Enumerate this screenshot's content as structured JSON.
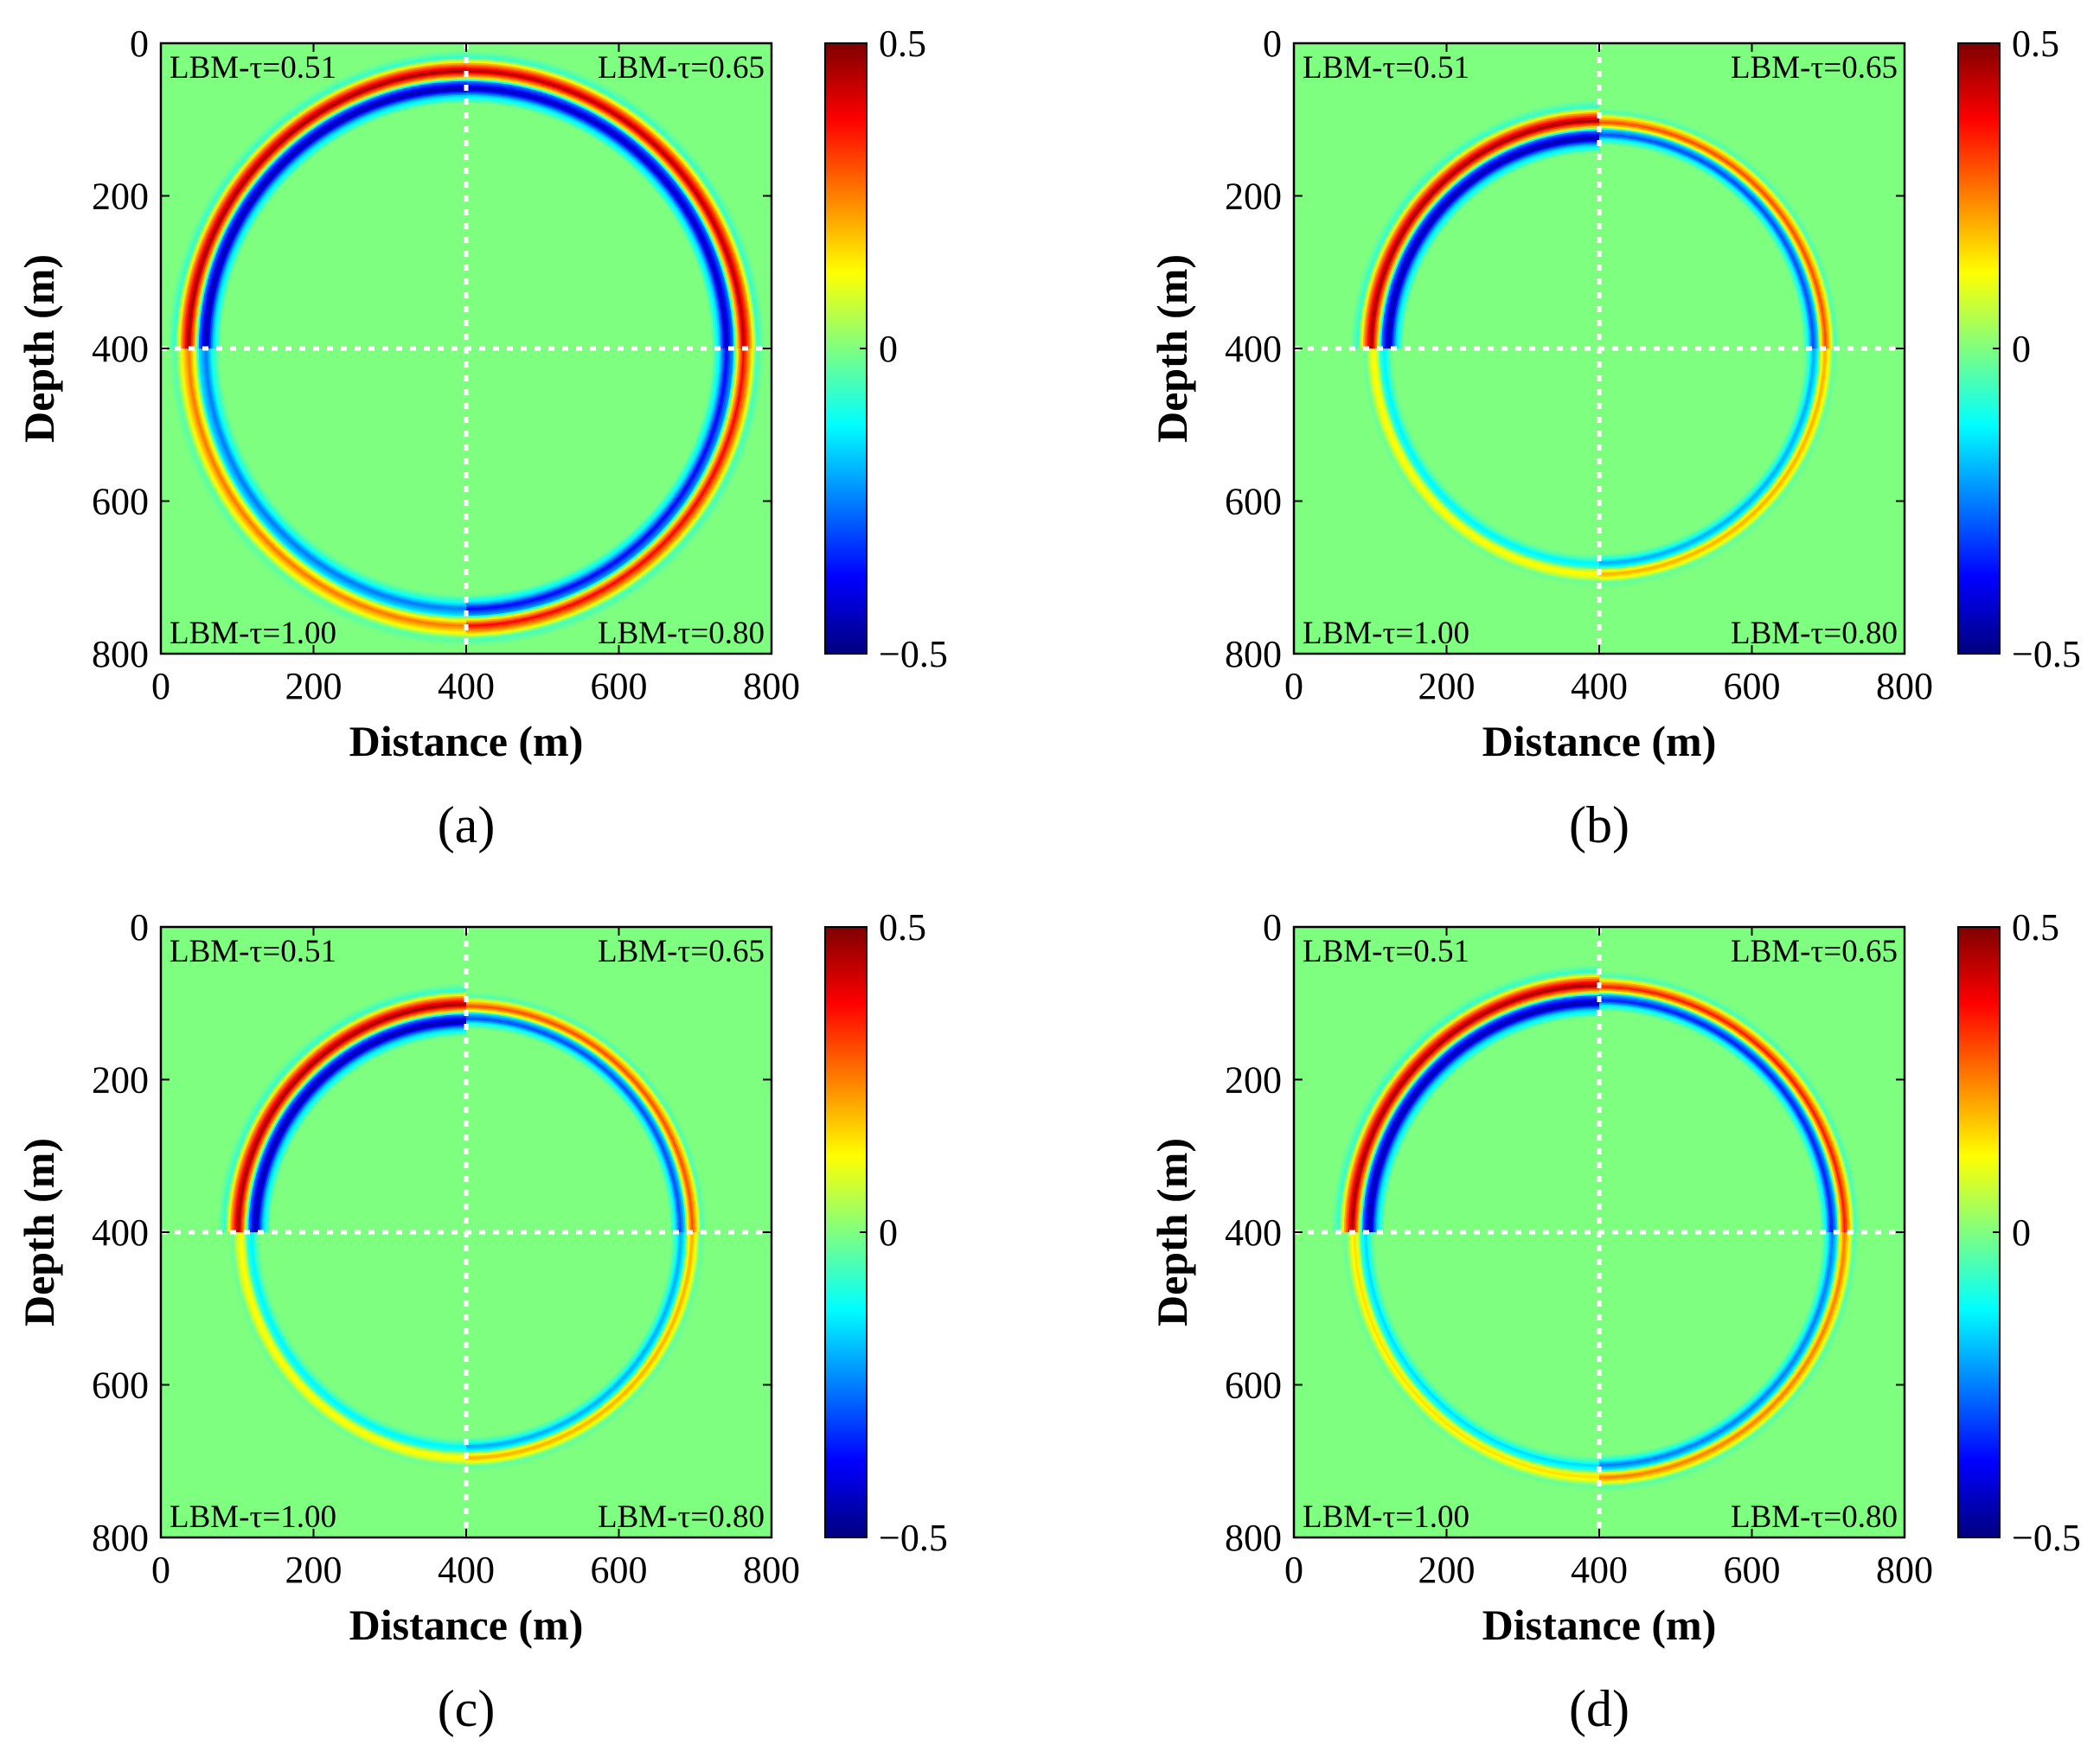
{
  "colors": {
    "background": "#ffffff",
    "field_zero": "#7fff7f",
    "separator": "#ffffff"
  },
  "colormap": {
    "name": "jet",
    "stops": [
      "#00007f",
      "#0000ff",
      "#007fff",
      "#00ffff",
      "#7fff7f",
      "#ffff00",
      "#ff7f00",
      "#ff0000",
      "#7f0000"
    ]
  },
  "chart_data": [
    {
      "type": "heatmap",
      "panel_label": "(a)",
      "xlabel": "Distance (m)",
      "ylabel": "Depth (m)",
      "xlim": [
        0,
        800
      ],
      "ylim": [
        0,
        800
      ],
      "xticks": [
        "0",
        "200",
        "400",
        "600",
        "800"
      ],
      "yticks": [
        "0",
        "200",
        "400",
        "600",
        "800"
      ],
      "colorbar": {
        "min": -0.5,
        "max": 0.5,
        "ticks": [
          "0.5",
          "0",
          "−0.5"
        ]
      },
      "source": {
        "x": 400,
        "y": 400
      },
      "wavefront_radius_m": 355,
      "divider_lines": {
        "x": 400,
        "y": 400,
        "style": "dotted"
      },
      "quadrants": [
        {
          "position": "top-left",
          "label": "LBM-τ=0.51",
          "amplitude": 1.0,
          "decay": 1.0
        },
        {
          "position": "top-right",
          "label": "LBM-τ=0.65",
          "amplitude": 0.95,
          "decay": 1.0
        },
        {
          "position": "bottom-left",
          "label": "LBM-τ=1.00",
          "amplitude": 0.55,
          "decay": 0.95
        },
        {
          "position": "bottom-right",
          "label": "LBM-τ=0.80",
          "amplitude": 0.8,
          "decay": 0.95
        }
      ]
    },
    {
      "type": "heatmap",
      "panel_label": "(b)",
      "xlabel": "Distance (m)",
      "ylabel": "Depth (m)",
      "xlim": [
        0,
        800
      ],
      "ylim": [
        0,
        800
      ],
      "xticks": [
        "0",
        "200",
        "400",
        "600",
        "800"
      ],
      "yticks": [
        "0",
        "200",
        "400",
        "600",
        "800"
      ],
      "colorbar": {
        "min": -0.5,
        "max": 0.5,
        "ticks": [
          "0.5",
          "0",
          "−0.5"
        ]
      },
      "source": {
        "x": 400,
        "y": 400
      },
      "wavefront_radius_m": 290,
      "divider_lines": {
        "x": 400,
        "y": 400,
        "style": "dotted"
      },
      "quadrants": [
        {
          "position": "top-left",
          "label": "LBM-τ=0.51",
          "amplitude": 1.0,
          "decay": 1.0
        },
        {
          "position": "top-right",
          "label": "LBM-τ=0.65",
          "amplitude": 0.65,
          "decay": 0.5
        },
        {
          "position": "bottom-left",
          "label": "LBM-τ=1.00",
          "amplitude": 0.3,
          "decay": 0.35
        },
        {
          "position": "bottom-right",
          "label": "LBM-τ=0.80",
          "amplitude": 0.45,
          "decay": 0.4
        }
      ]
    },
    {
      "type": "heatmap",
      "panel_label": "(c)",
      "xlabel": "Distance (m)",
      "ylabel": "Depth (m)",
      "xlim": [
        0,
        800
      ],
      "ylim": [
        0,
        800
      ],
      "xticks": [
        "0",
        "200",
        "400",
        "600",
        "800"
      ],
      "yticks": [
        "0",
        "200",
        "400",
        "600",
        "800"
      ],
      "colorbar": {
        "min": -0.5,
        "max": 0.5,
        "ticks": [
          "0.5",
          "0",
          "−0.5"
        ]
      },
      "source": {
        "x": 400,
        "y": 400
      },
      "wavefront_radius_m": 290,
      "divider_lines": {
        "x": 400,
        "y": 400,
        "style": "dotted"
      },
      "quadrants": [
        {
          "position": "top-left",
          "label": "LBM-τ=0.51",
          "amplitude": 1.0,
          "decay": 1.0
        },
        {
          "position": "top-right",
          "label": "LBM-τ=0.65",
          "amplitude": 0.65,
          "decay": 0.5
        },
        {
          "position": "bottom-left",
          "label": "LBM-τ=1.00",
          "amplitude": 0.3,
          "decay": 0.35
        },
        {
          "position": "bottom-right",
          "label": "LBM-τ=0.80",
          "amplitude": 0.45,
          "decay": 0.4
        }
      ]
    },
    {
      "type": "heatmap",
      "panel_label": "(d)",
      "xlabel": "Distance (m)",
      "ylabel": "Depth (m)",
      "xlim": [
        0,
        800
      ],
      "ylim": [
        0,
        800
      ],
      "xticks": [
        "0",
        "200",
        "400",
        "600",
        "800"
      ],
      "yticks": [
        "0",
        "200",
        "400",
        "600",
        "800"
      ],
      "colorbar": {
        "min": -0.5,
        "max": 0.5,
        "ticks": [
          "0.5",
          "0",
          "−0.5"
        ]
      },
      "source": {
        "x": 400,
        "y": 400
      },
      "wavefront_radius_m": 315,
      "divider_lines": {
        "x": 400,
        "y": 400,
        "style": "dotted"
      },
      "quadrants": [
        {
          "position": "top-left",
          "label": "LBM-τ=0.51",
          "amplitude": 1.0,
          "decay": 1.0
        },
        {
          "position": "top-right",
          "label": "LBM-τ=0.65",
          "amplitude": 0.75,
          "decay": 0.6
        },
        {
          "position": "bottom-left",
          "label": "LBM-τ=1.00",
          "amplitude": 0.35,
          "decay": 0.4
        },
        {
          "position": "bottom-right",
          "label": "LBM-τ=0.80",
          "amplitude": 0.55,
          "decay": 0.5
        }
      ]
    }
  ]
}
